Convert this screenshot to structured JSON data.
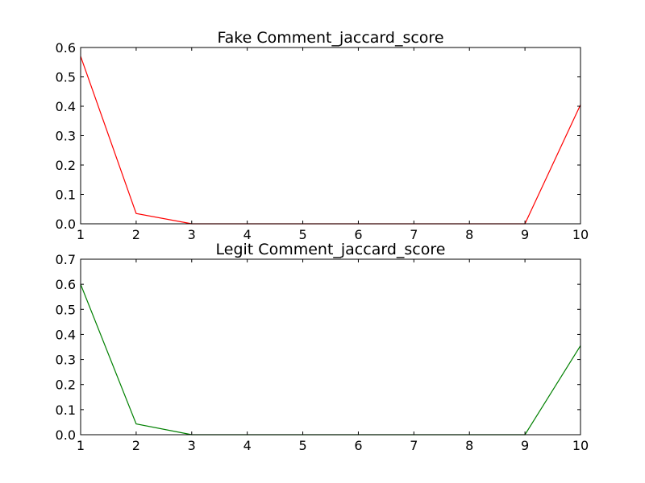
{
  "chart_data": [
    {
      "type": "line",
      "title": "Fake Comment_jaccard_score",
      "xlim": [
        1,
        10
      ],
      "ylim": [
        0,
        0.6
      ],
      "x_ticks": [
        1,
        2,
        3,
        4,
        5,
        6,
        7,
        8,
        9,
        10
      ],
      "x_tick_labels": [
        "1",
        "2",
        "3",
        "4",
        "5",
        "6",
        "7",
        "8",
        "9",
        "10"
      ],
      "y_ticks": [
        0,
        0.1,
        0.2,
        0.3,
        0.4,
        0.5,
        0.6
      ],
      "y_tick_labels": [
        "0.0",
        "0.1",
        "0.2",
        "0.3",
        "0.4",
        "0.5",
        "0.6"
      ],
      "grid": false,
      "series": [
        {
          "color": "#ff0000",
          "x": [
            1,
            2,
            3,
            4,
            5,
            6,
            7,
            8,
            9,
            10
          ],
          "y": [
            0.57,
            0.035,
            0.0,
            0.0,
            0.0,
            0.0,
            0.0,
            0.0,
            0.0,
            0.405
          ]
        }
      ]
    },
    {
      "type": "line",
      "title": "Legit Comment_jaccard_score",
      "xlim": [
        1,
        10
      ],
      "ylim": [
        0,
        0.7
      ],
      "x_ticks": [
        1,
        2,
        3,
        4,
        5,
        6,
        7,
        8,
        9,
        10
      ],
      "x_tick_labels": [
        "1",
        "2",
        "3",
        "4",
        "5",
        "6",
        "7",
        "8",
        "9",
        "10"
      ],
      "y_ticks": [
        0,
        0.1,
        0.2,
        0.3,
        0.4,
        0.5,
        0.6,
        0.7
      ],
      "y_tick_labels": [
        "0.0",
        "0.1",
        "0.2",
        "0.3",
        "0.4",
        "0.5",
        "0.6",
        "0.7"
      ],
      "grid": false,
      "series": [
        {
          "color": "#008000",
          "x": [
            1,
            2,
            3,
            4,
            5,
            6,
            7,
            8,
            9,
            10
          ],
          "y": [
            0.6,
            0.043,
            0.0,
            0.0,
            0.0,
            0.0,
            0.0,
            0.0,
            0.0,
            0.355
          ]
        }
      ]
    }
  ]
}
